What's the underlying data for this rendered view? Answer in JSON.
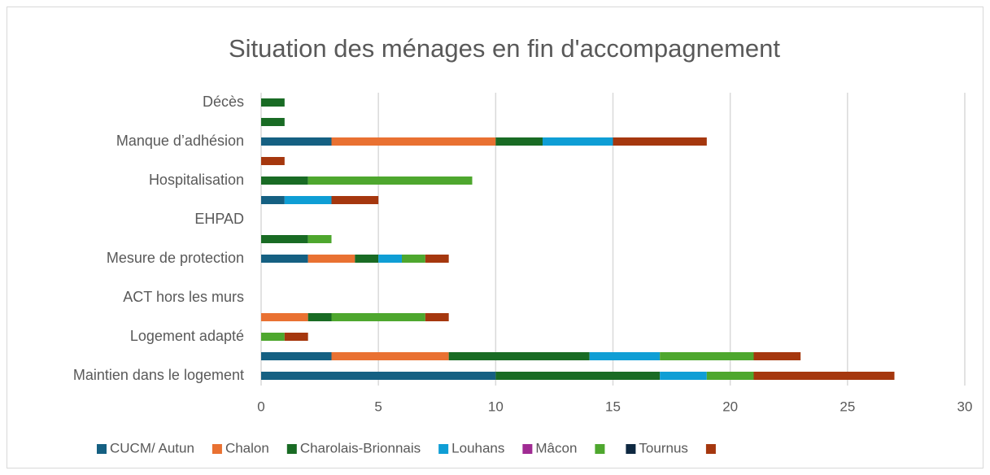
{
  "chart_data": {
    "type": "stacked_barh",
    "title": "Situation des ménages en fin d'accompagnement",
    "categories": [
      "Décès",
      null,
      "Manque d’adhésion",
      null,
      "Hospitalisation",
      null,
      "EHPAD",
      null,
      "Mesure de protection",
      null,
      "ACT hors les murs",
      null,
      "Logement adapté",
      null,
      "Maintien dans le logement"
    ],
    "series": [
      {
        "name": "CUCM/ Autun",
        "color": "#156082",
        "values": [
          0,
          0,
          3,
          0,
          0,
          1,
          0,
          0,
          2,
          0,
          0,
          0,
          0,
          3,
          10
        ]
      },
      {
        "name": "Chalon",
        "color": "#e97132",
        "values": [
          0,
          0,
          7,
          0,
          0,
          0,
          0,
          0,
          2,
          0,
          0,
          2,
          0,
          5,
          0
        ]
      },
      {
        "name": "Charolais-Brionnais",
        "color": "#196b24",
        "values": [
          1,
          1,
          2,
          0,
          2,
          0,
          0,
          2,
          1,
          0,
          0,
          1,
          0,
          6,
          7
        ]
      },
      {
        "name": "Louhans",
        "color": "#0f9ed5",
        "values": [
          0,
          0,
          3,
          0,
          0,
          2,
          0,
          0,
          1,
          0,
          0,
          0,
          0,
          3,
          2
        ]
      },
      {
        "name": "Mâcon",
        "color": "#a02b93",
        "values": [
          0,
          0,
          0,
          0,
          0,
          0,
          0,
          0,
          0,
          0,
          0,
          0,
          0,
          0,
          0
        ]
      },
      {
        "name": null,
        "color": "#4ea72e",
        "values": [
          0,
          0,
          0,
          0,
          7,
          0,
          0,
          1,
          1,
          0,
          0,
          4,
          1,
          4,
          2
        ]
      },
      {
        "name": "Tournus",
        "color": "#0e2841",
        "values": [
          0,
          0,
          0,
          0,
          0,
          0,
          0,
          0,
          0,
          0,
          0,
          0,
          0,
          0,
          0
        ]
      },
      {
        "name": null,
        "color": "#a5370e",
        "values": [
          0,
          0,
          4,
          1,
          0,
          2,
          0,
          0,
          1,
          0,
          0,
          1,
          1,
          2,
          6
        ]
      }
    ],
    "xlim": [
      0,
      30
    ],
    "xticks": [
      0,
      5,
      10,
      15,
      20,
      25,
      30
    ],
    "grid": true,
    "legend": "bottom"
  }
}
